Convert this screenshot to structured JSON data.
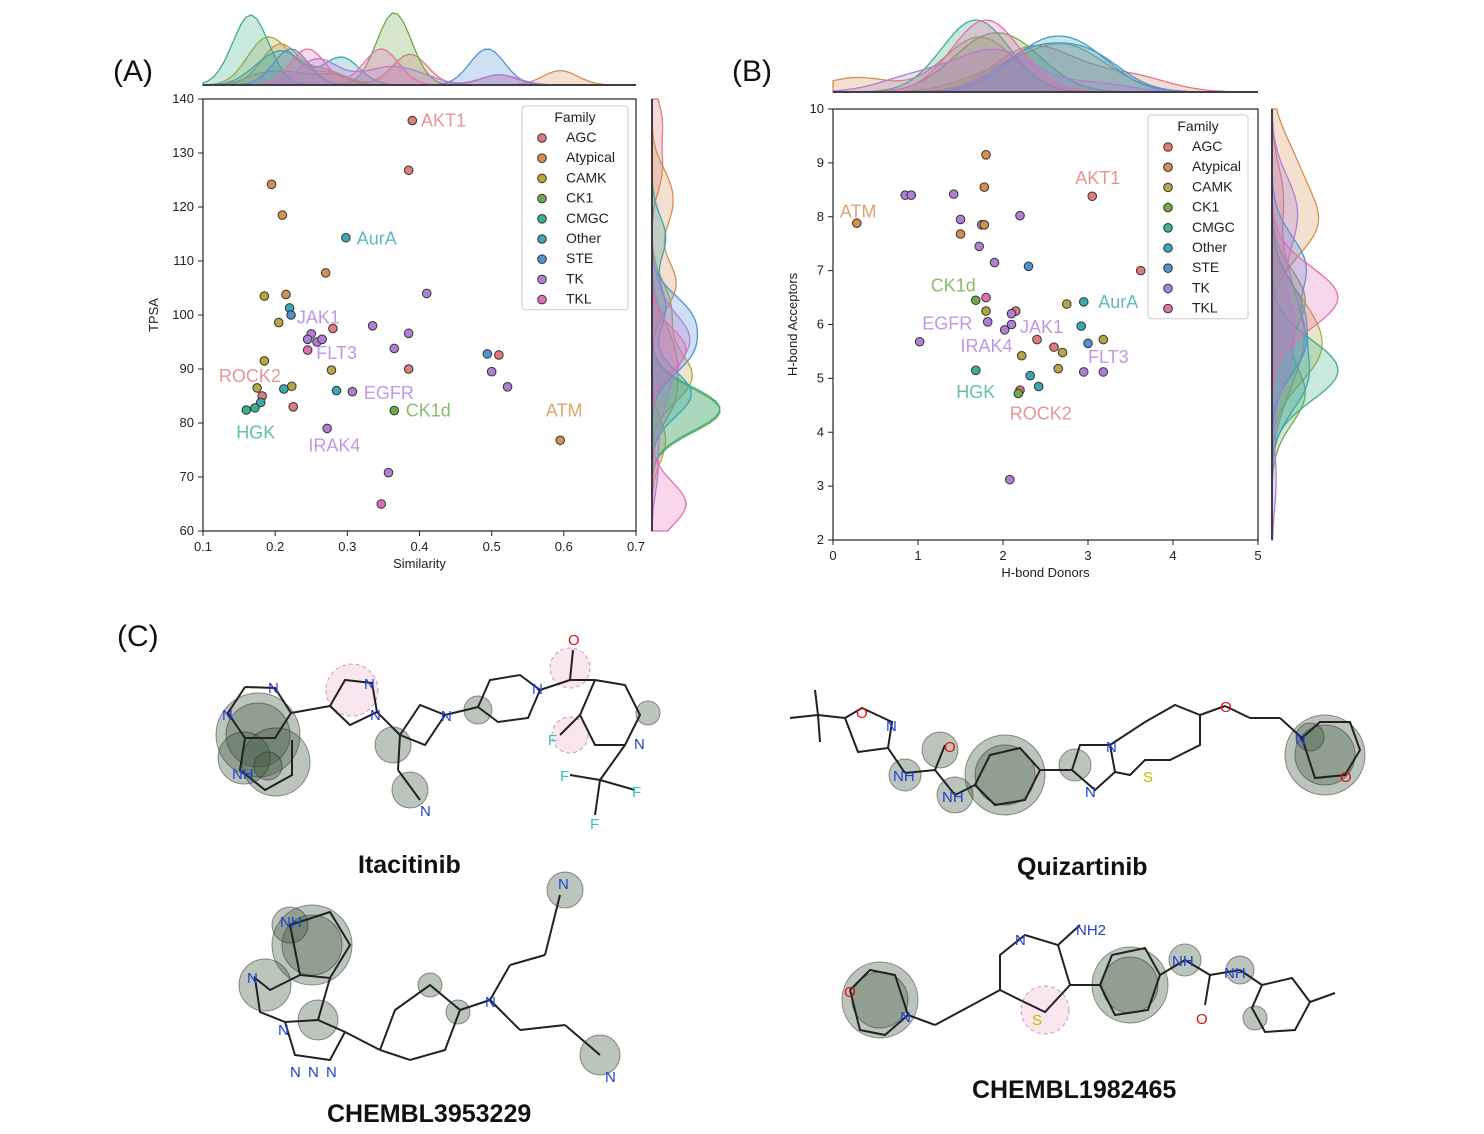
{
  "families": [
    {
      "name": "AGC",
      "color": "#e07b7b"
    },
    {
      "name": "Atypical",
      "color": "#d4904e"
    },
    {
      "name": "CAMK",
      "color": "#b5a640"
    },
    {
      "name": "CK1",
      "color": "#6daa4a"
    },
    {
      "name": "CMGC",
      "color": "#3cb08a"
    },
    {
      "name": "Other",
      "color": "#3aa7b4"
    },
    {
      "name": "STE",
      "color": "#4f93d4"
    },
    {
      "name": "TK",
      "color": "#b07ed8"
    },
    {
      "name": "TKL",
      "color": "#e36fb2"
    }
  ],
  "panels": {
    "A": "(A)",
    "B": "(B)",
    "C": "(C)"
  },
  "chart_data": [
    {
      "type": "scatter",
      "xlabel": "Similarity",
      "ylabel": "TPSA",
      "xlim": [
        0.1,
        0.7
      ],
      "ylim": [
        60,
        140
      ],
      "xticks": [
        0.1,
        0.2,
        0.3,
        0.4,
        0.5,
        0.6,
        0.7
      ],
      "yticks": [
        60,
        70,
        80,
        90,
        100,
        110,
        120,
        130,
        140
      ],
      "legend_title": "Family",
      "legend_position": "top-right",
      "marginals": "kde",
      "points": [
        {
          "x": 0.39,
          "y": 136,
          "family": "AGC"
        },
        {
          "x": 0.385,
          "y": 126.8,
          "family": "AGC"
        },
        {
          "x": 0.195,
          "y": 124.2,
          "family": "Atypical"
        },
        {
          "x": 0.21,
          "y": 118.5,
          "family": "Atypical"
        },
        {
          "x": 0.298,
          "y": 114.3,
          "family": "Other"
        },
        {
          "x": 0.27,
          "y": 107.8,
          "family": "Atypical"
        },
        {
          "x": 0.41,
          "y": 104.0,
          "family": "TK"
        },
        {
          "x": 0.185,
          "y": 103.5,
          "family": "CAMK"
        },
        {
          "x": 0.215,
          "y": 103.8,
          "family": "Atypical"
        },
        {
          "x": 0.22,
          "y": 101.3,
          "family": "Other"
        },
        {
          "x": 0.222,
          "y": 100.0,
          "family": "STE"
        },
        {
          "x": 0.205,
          "y": 98.6,
          "family": "CAMK"
        },
        {
          "x": 0.335,
          "y": 98.0,
          "family": "TK"
        },
        {
          "x": 0.28,
          "y": 97.5,
          "family": "AGC"
        },
        {
          "x": 0.25,
          "y": 96.5,
          "family": "TK"
        },
        {
          "x": 0.245,
          "y": 95.5,
          "family": "TK"
        },
        {
          "x": 0.258,
          "y": 95.0,
          "family": "TK"
        },
        {
          "x": 0.265,
          "y": 95.5,
          "family": "TK"
        },
        {
          "x": 0.385,
          "y": 96.6,
          "family": "TK"
        },
        {
          "x": 0.245,
          "y": 93.5,
          "family": "TKL"
        },
        {
          "x": 0.365,
          "y": 93.8,
          "family": "TK"
        },
        {
          "x": 0.185,
          "y": 91.5,
          "family": "CAMK"
        },
        {
          "x": 0.494,
          "y": 92.8,
          "family": "STE"
        },
        {
          "x": 0.51,
          "y": 92.6,
          "family": "AGC"
        },
        {
          "x": 0.385,
          "y": 90.0,
          "family": "AGC"
        },
        {
          "x": 0.278,
          "y": 89.8,
          "family": "CAMK"
        },
        {
          "x": 0.5,
          "y": 89.5,
          "family": "TK"
        },
        {
          "x": 0.522,
          "y": 86.7,
          "family": "TK"
        },
        {
          "x": 0.175,
          "y": 86.5,
          "family": "CAMK"
        },
        {
          "x": 0.223,
          "y": 86.8,
          "family": "CAMK"
        },
        {
          "x": 0.212,
          "y": 86.3,
          "family": "Other"
        },
        {
          "x": 0.285,
          "y": 86.0,
          "family": "Other"
        },
        {
          "x": 0.307,
          "y": 85.8,
          "family": "TK"
        },
        {
          "x": 0.182,
          "y": 85.0,
          "family": "AGC"
        },
        {
          "x": 0.18,
          "y": 83.8,
          "family": "Other"
        },
        {
          "x": 0.172,
          "y": 82.8,
          "family": "CMGC"
        },
        {
          "x": 0.16,
          "y": 82.4,
          "family": "CMGC"
        },
        {
          "x": 0.225,
          "y": 83.0,
          "family": "AGC"
        },
        {
          "x": 0.365,
          "y": 82.3,
          "family": "CK1"
        },
        {
          "x": 0.272,
          "y": 79.0,
          "family": "TK"
        },
        {
          "x": 0.595,
          "y": 76.8,
          "family": "Atypical"
        },
        {
          "x": 0.357,
          "y": 70.8,
          "family": "TK"
        },
        {
          "x": 0.347,
          "y": 65.0,
          "family": "TKL"
        }
      ],
      "annotations": [
        {
          "text": "AKT1",
          "family": "AGC",
          "x": 0.402,
          "y": 136
        },
        {
          "text": "AurA",
          "family": "Other",
          "x": 0.313,
          "y": 114.2
        },
        {
          "text": "JAK1",
          "family": "TK",
          "x": 0.23,
          "y": 99.5
        },
        {
          "text": "FLT3",
          "family": "TK",
          "x": 0.257,
          "y": 93.0
        },
        {
          "text": "ROCK2",
          "family": "AGC",
          "x": 0.122,
          "y": 88.7
        },
        {
          "text": "EGFR",
          "family": "TK",
          "x": 0.323,
          "y": 85.6
        },
        {
          "text": "CK1d",
          "family": "CK1",
          "x": 0.381,
          "y": 82.3
        },
        {
          "text": "ATM",
          "family": "Atypical",
          "x": 0.575,
          "y": 82.3
        },
        {
          "text": "HGK",
          "family": "CMGC",
          "x": 0.146,
          "y": 78.2
        },
        {
          "text": "IRAK4",
          "family": "TK",
          "x": 0.246,
          "y": 75.8
        }
      ]
    },
    {
      "type": "scatter",
      "xlabel": "H-bond Donors",
      "ylabel": "H-bond Acceptors",
      "xlim": [
        0,
        5
      ],
      "ylim": [
        2,
        10
      ],
      "xticks": [
        0,
        1,
        2,
        3,
        4,
        5
      ],
      "yticks": [
        2,
        3,
        4,
        5,
        6,
        7,
        8,
        9,
        10
      ],
      "legend_title": "Family",
      "legend_position": "top-right",
      "marginals": "kde",
      "points": [
        {
          "x": 1.8,
          "y": 9.15,
          "family": "Atypical"
        },
        {
          "x": 1.78,
          "y": 8.55,
          "family": "Atypical"
        },
        {
          "x": 3.05,
          "y": 8.38,
          "family": "AGC"
        },
        {
          "x": 0.85,
          "y": 8.4,
          "family": "TK"
        },
        {
          "x": 0.92,
          "y": 8.4,
          "family": "TK"
        },
        {
          "x": 1.42,
          "y": 8.42,
          "family": "TK"
        },
        {
          "x": 0.28,
          "y": 7.88,
          "family": "Atypical"
        },
        {
          "x": 1.5,
          "y": 7.95,
          "family": "TK"
        },
        {
          "x": 1.75,
          "y": 7.85,
          "family": "TK"
        },
        {
          "x": 1.78,
          "y": 7.85,
          "family": "Atypical"
        },
        {
          "x": 2.2,
          "y": 8.02,
          "family": "TK"
        },
        {
          "x": 1.5,
          "y": 7.68,
          "family": "Atypical"
        },
        {
          "x": 1.72,
          "y": 7.45,
          "family": "TK"
        },
        {
          "x": 1.9,
          "y": 7.15,
          "family": "TK"
        },
        {
          "x": 2.3,
          "y": 7.08,
          "family": "STE"
        },
        {
          "x": 3.62,
          "y": 7.0,
          "family": "AGC"
        },
        {
          "x": 1.68,
          "y": 6.45,
          "family": "CK1"
        },
        {
          "x": 1.8,
          "y": 6.5,
          "family": "TKL"
        },
        {
          "x": 2.75,
          "y": 6.38,
          "family": "CAMK"
        },
        {
          "x": 2.95,
          "y": 6.42,
          "family": "Other"
        },
        {
          "x": 1.8,
          "y": 6.25,
          "family": "CAMK"
        },
        {
          "x": 1.82,
          "y": 6.05,
          "family": "TK"
        },
        {
          "x": 2.15,
          "y": 6.25,
          "family": "AGC"
        },
        {
          "x": 2.1,
          "y": 6.2,
          "family": "TK"
        },
        {
          "x": 2.02,
          "y": 5.9,
          "family": "TK"
        },
        {
          "x": 2.1,
          "y": 6.0,
          "family": "TK"
        },
        {
          "x": 2.92,
          "y": 5.97,
          "family": "Other"
        },
        {
          "x": 3.18,
          "y": 5.72,
          "family": "CAMK"
        },
        {
          "x": 3.0,
          "y": 5.65,
          "family": "STE"
        },
        {
          "x": 1.02,
          "y": 5.68,
          "family": "TK"
        },
        {
          "x": 2.4,
          "y": 5.72,
          "family": "AGC"
        },
        {
          "x": 2.6,
          "y": 5.58,
          "family": "AGC"
        },
        {
          "x": 2.7,
          "y": 5.48,
          "family": "CAMK"
        },
        {
          "x": 2.22,
          "y": 5.42,
          "family": "CAMK"
        },
        {
          "x": 2.65,
          "y": 5.18,
          "family": "CAMK"
        },
        {
          "x": 1.68,
          "y": 5.15,
          "family": "CMGC"
        },
        {
          "x": 2.32,
          "y": 5.05,
          "family": "Other"
        },
        {
          "x": 2.95,
          "y": 5.12,
          "family": "TK"
        },
        {
          "x": 3.18,
          "y": 5.12,
          "family": "TK"
        },
        {
          "x": 2.42,
          "y": 4.85,
          "family": "Other"
        },
        {
          "x": 2.2,
          "y": 4.78,
          "family": "AGC"
        },
        {
          "x": 2.18,
          "y": 4.72,
          "family": "CK1"
        },
        {
          "x": 2.08,
          "y": 3.12,
          "family": "TK"
        }
      ],
      "annotations": [
        {
          "text": "AKT1",
          "family": "AGC",
          "x": 2.85,
          "y": 8.72
        },
        {
          "text": "ATM",
          "family": "Atypical",
          "x": 0.08,
          "y": 8.1
        },
        {
          "text": "CK1d",
          "family": "CK1",
          "x": 1.15,
          "y": 6.72
        },
        {
          "text": "AurA",
          "family": "Other",
          "x": 3.12,
          "y": 6.42
        },
        {
          "text": "EGFR",
          "family": "TK",
          "x": 1.05,
          "y": 6.02
        },
        {
          "text": "JAK1",
          "family": "TK",
          "x": 2.2,
          "y": 5.95
        },
        {
          "text": "IRAK4",
          "family": "TK",
          "x": 1.5,
          "y": 5.6
        },
        {
          "text": "FLT3",
          "family": "TK",
          "x": 3.0,
          "y": 5.4
        },
        {
          "text": "HGK",
          "family": "CMGC",
          "x": 1.45,
          "y": 4.75
        },
        {
          "text": "ROCK2",
          "family": "AGC",
          "x": 2.08,
          "y": 4.35
        }
      ]
    }
  ],
  "molecules": [
    {
      "name": "Itacitinib"
    },
    {
      "name": "Quizartinib"
    },
    {
      "name": "CHEMBL3953229"
    },
    {
      "name": "CHEMBL1982465"
    }
  ],
  "atom_labels": {
    "N": "N",
    "O": "O",
    "S": "S",
    "F": "F",
    "NH": "NH",
    "NH2": "NH2"
  }
}
